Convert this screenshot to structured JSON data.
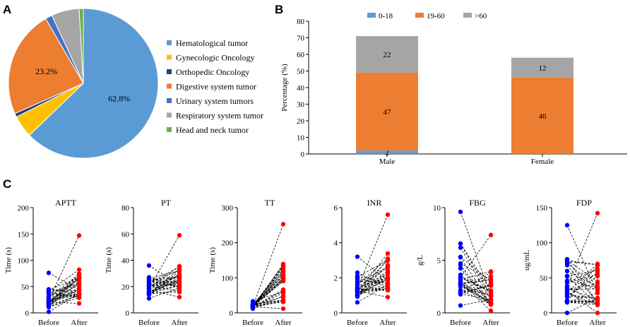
{
  "panels": {
    "a": "A",
    "b": "B",
    "c": "C"
  },
  "colors": {
    "pie": [
      "#5b9bd5",
      "#ffc000",
      "#264478",
      "#ed7d31",
      "#4472c4",
      "#a5a5a5",
      "#70ad47"
    ],
    "age": [
      "#5b9bd5",
      "#ed7d31",
      "#a5a5a5"
    ],
    "before": "#0000ff",
    "after": "#ff0000"
  },
  "chart_data": [
    {
      "type": "pie",
      "panel": "A",
      "labels": [
        "Hematological tumor",
        "Gynecologic Oncology",
        "Orthopedic Oncology",
        "Digestive system tumor",
        "Urinary system tumors",
        "Respiratory system tumor",
        "Head and neck tumor"
      ],
      "values": [
        62.8,
        4.8,
        0.8,
        23.2,
        1.5,
        6.0,
        0.9
      ],
      "data_labels": [
        "62.8%",
        "",
        "",
        "23.2%",
        "",
        "",
        ""
      ],
      "legend_position": "right"
    },
    {
      "type": "bar",
      "stacked": true,
      "panel": "B",
      "categories": [
        "Male",
        "Female"
      ],
      "series": [
        {
          "name": "0-18",
          "values": [
            2,
            0
          ],
          "labels": [
            "2",
            ""
          ]
        },
        {
          "name": "19-60",
          "values": [
            47,
            46
          ],
          "labels": [
            "47",
            "46"
          ]
        },
        {
          "name": ">60",
          "values": [
            22,
            12
          ],
          "labels": [
            "22",
            "12"
          ]
        }
      ],
      "ylabel": "Percentage (%)",
      "ylim": [
        0,
        80
      ],
      "yticks": [
        "0",
        "10",
        "20",
        "30",
        "40",
        "50",
        "60",
        "70",
        "80"
      ],
      "legend_position": "top"
    },
    {
      "type": "scatter",
      "panel": "C",
      "subtype": "paired before-after",
      "groups": [
        "Before",
        "After"
      ],
      "plots": [
        {
          "title": "APTT",
          "ylabel": "Time (s)",
          "ylim": [
            0,
            200
          ],
          "yticks": [
            "0",
            "50",
            "100",
            "150",
            "200"
          ],
          "before_range": [
            2,
            76
          ],
          "after_range": [
            18,
            147
          ],
          "seed": 11
        },
        {
          "title": "PT",
          "ylabel": "Time (s)",
          "ylim": [
            0,
            80
          ],
          "yticks": [
            "0",
            "20",
            "40",
            "60",
            "80"
          ],
          "before_range": [
            11,
            36
          ],
          "after_range": [
            12,
            59
          ],
          "seed": 23
        },
        {
          "title": "TT",
          "ylabel": "Time (s)",
          "ylim": [
            0,
            300
          ],
          "yticks": [
            "0",
            "100",
            "200",
            "300"
          ],
          "before_range": [
            12,
            33
          ],
          "after_range": [
            12,
            253
          ],
          "seed": 37
        },
        {
          "title": "INR",
          "ylabel": "",
          "ylim": [
            0,
            6
          ],
          "yticks": [
            "0",
            "2",
            "4",
            "6"
          ],
          "before_range": [
            0.6,
            3.2
          ],
          "after_range": [
            0.9,
            5.6
          ],
          "seed": 41
        },
        {
          "title": "FBG",
          "ylabel": "g/L",
          "ylim": [
            0,
            10
          ],
          "yticks": [
            "0",
            "5",
            "10"
          ],
          "before_range": [
            0.7,
            9.6
          ],
          "after_range": [
            0.2,
            7.4
          ],
          "seed": 53
        },
        {
          "title": "FDP",
          "ylabel": "ug/mL",
          "ylim": [
            0,
            150
          ],
          "yticks": [
            "0",
            "50",
            "100",
            "150"
          ],
          "before_range": [
            0,
            125
          ],
          "after_range": [
            0,
            142
          ],
          "seed": 67
        }
      ]
    }
  ]
}
